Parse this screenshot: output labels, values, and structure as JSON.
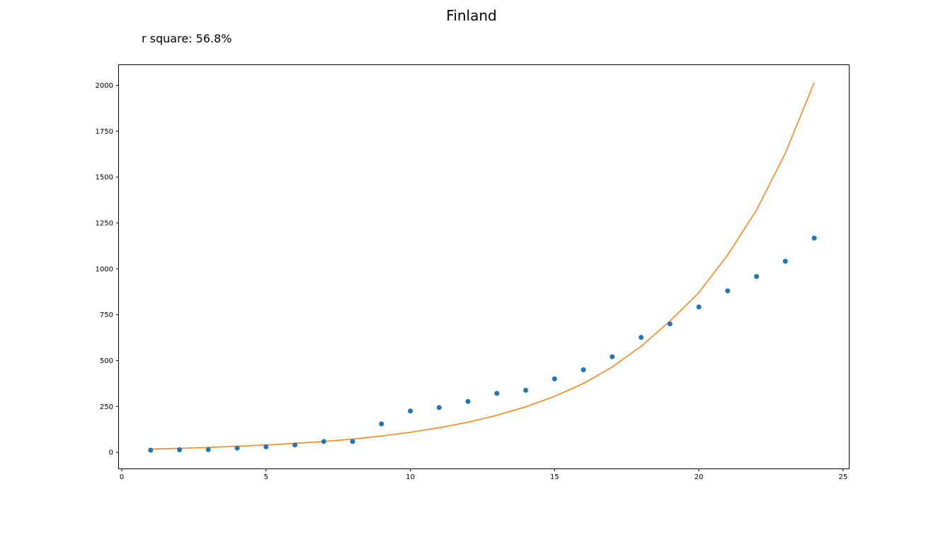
{
  "chart_data": {
    "type": "scatter",
    "title": "Finland",
    "subtitle": "r square: 56.8%",
    "xlabel": "",
    "ylabel": "",
    "xlim": [
      -0.1,
      25.2
    ],
    "ylim": [
      -88,
      2110
    ],
    "xticks": [
      0,
      5,
      10,
      15,
      20,
      25
    ],
    "yticks": [
      0,
      250,
      500,
      750,
      1000,
      1250,
      1500,
      1750,
      2000
    ],
    "grid": false,
    "legend": "none",
    "series": [
      {
        "kind": "scatter",
        "color": "#1f77b4",
        "x": [
          1,
          2,
          3,
          4,
          5,
          6,
          7,
          8,
          9,
          10,
          11,
          12,
          13,
          14,
          15,
          16,
          17,
          18,
          19,
          20,
          21,
          22,
          23,
          24
        ],
        "y": [
          12,
          14,
          15,
          23,
          30,
          40,
          59,
          59,
          155,
          225,
          244,
          277,
          321,
          338,
          400,
          450,
          521,
          626,
          700,
          792,
          880,
          958,
          1041,
          1167
        ]
      },
      {
        "kind": "line",
        "color": "#ff7f0e",
        "x": [
          1,
          2,
          3,
          4,
          5,
          6,
          7,
          8,
          9,
          10,
          11,
          12,
          13,
          14,
          15,
          16,
          17,
          18,
          19,
          20,
          21,
          22,
          23,
          24
        ],
        "y": [
          18,
          22,
          27,
          33,
          40,
          49,
          59,
          72,
          89,
          109,
          134,
          164,
          202,
          248,
          305,
          375,
          465,
          578,
          715,
          870,
          1075,
          1320,
          1630,
          2015
        ]
      }
    ]
  }
}
